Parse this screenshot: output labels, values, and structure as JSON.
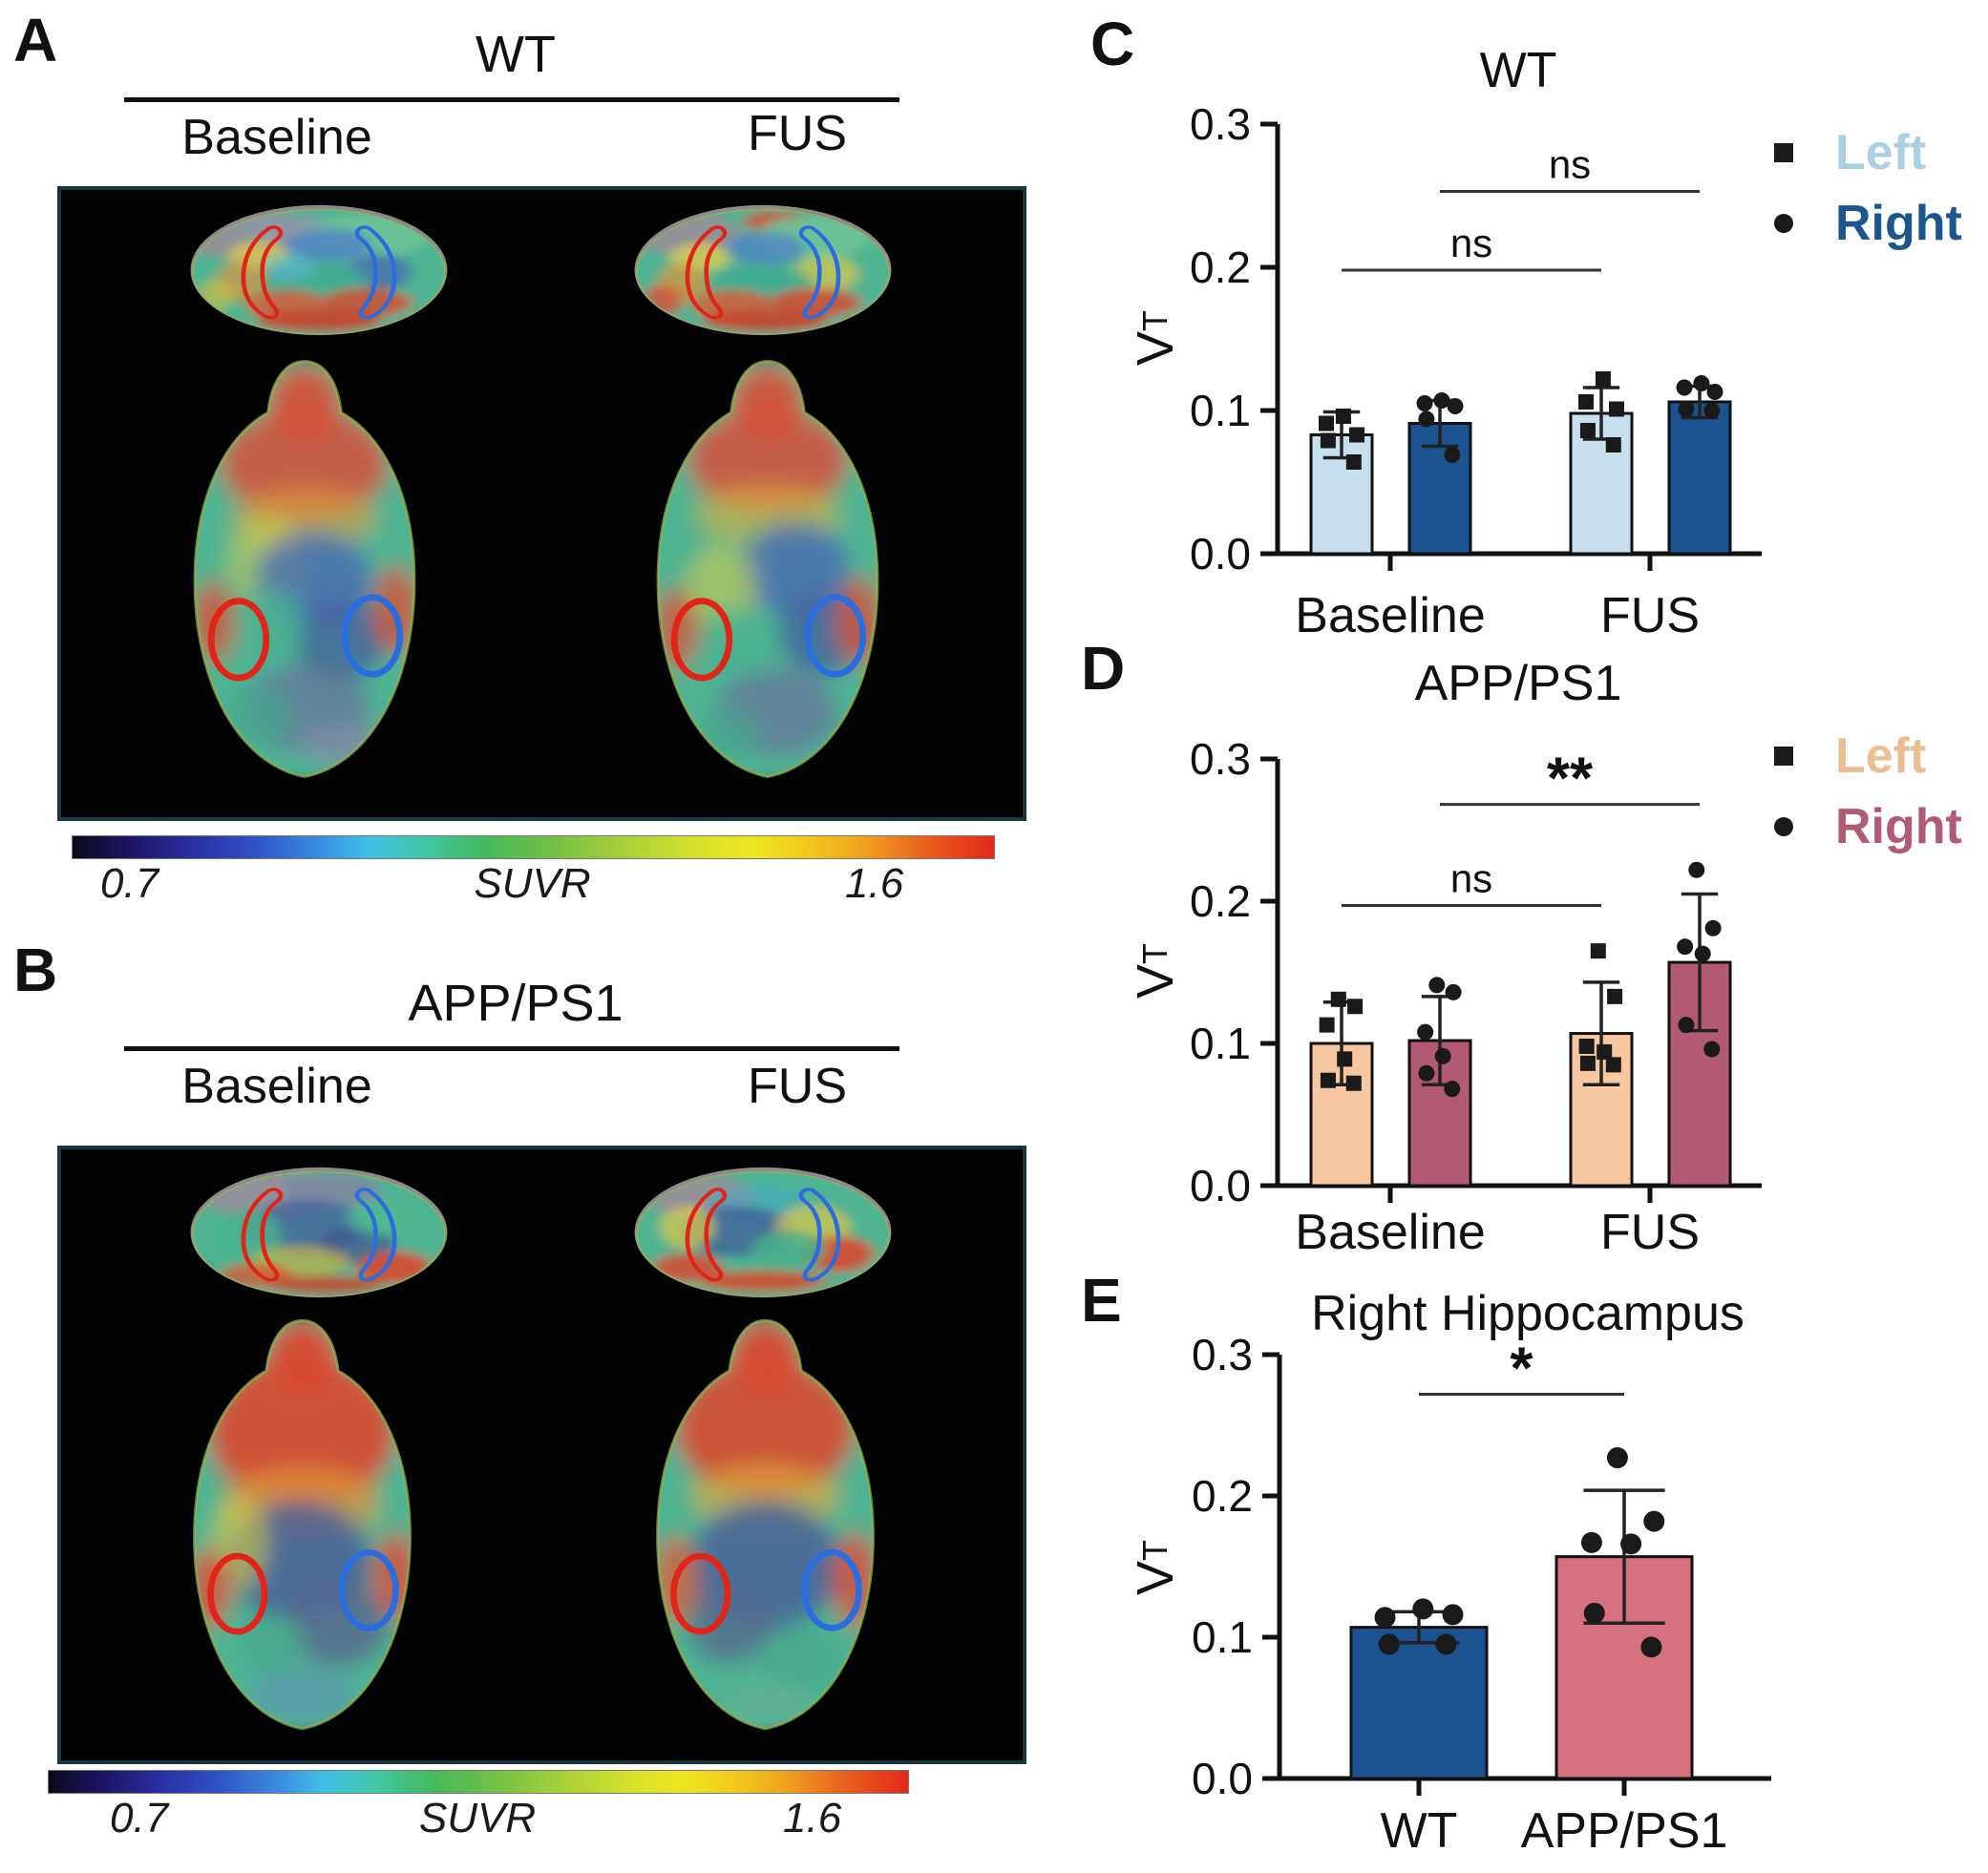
{
  "panels": {
    "A": {
      "label": "A",
      "title": "WT",
      "columns": [
        "Baseline",
        "FUS"
      ],
      "colorbar": {
        "min": "0.7",
        "label": "SUVR",
        "max": "1.6"
      },
      "roi": {
        "left_outline": "#e02418",
        "right_outline": "#2a6ddf"
      }
    },
    "B": {
      "label": "B",
      "title": "APP/PS1",
      "columns": [
        "Baseline",
        "FUS"
      ],
      "colorbar": {
        "min": "0.7",
        "label": "SUVR",
        "max": "1.6"
      },
      "roi": {
        "left_outline": "#e02418",
        "right_outline": "#2a6ddf"
      }
    },
    "C": {
      "label": "C"
    },
    "D": {
      "label": "D"
    },
    "E": {
      "label": "E"
    }
  },
  "colorbar_gradient": [
    [
      "0%",
      "#0a0a18"
    ],
    [
      "6%",
      "#1c1464"
    ],
    [
      "13%",
      "#2a2ea0"
    ],
    [
      "20%",
      "#2f55c8"
    ],
    [
      "27%",
      "#3a8ee0"
    ],
    [
      "32%",
      "#3fc0e8"
    ],
    [
      "38%",
      "#41c8a8"
    ],
    [
      "45%",
      "#45b858"
    ],
    [
      "52%",
      "#72c146"
    ],
    [
      "60%",
      "#a8d038"
    ],
    [
      "68%",
      "#d8e22c"
    ],
    [
      "74%",
      "#eee420"
    ],
    [
      "80%",
      "#f2c81e"
    ],
    [
      "86%",
      "#f0a01e"
    ],
    [
      "92%",
      "#ea6420"
    ],
    [
      "100%",
      "#e22818"
    ]
  ],
  "chart_data": [
    {
      "type": "bar",
      "panel": "C",
      "title": "WT",
      "ylabel": "V",
      "ylabel_sub": "T",
      "ylim": [
        0,
        0.3
      ],
      "yticks": [
        "0.0",
        "0.1",
        "0.2",
        "0.3"
      ],
      "categories": [
        "Baseline",
        "FUS"
      ],
      "series": [
        {
          "name": "Left",
          "marker": "square",
          "bar_color": "#c7e0ed",
          "label_color": "#a9d1e2",
          "values": [
            0.083,
            0.098
          ],
          "sd": [
            0.016,
            0.018
          ],
          "points": [
            [
              0.096,
              0.091,
              0.083,
              0.079,
              0.064
            ],
            [
              0.122,
              0.106,
              0.101,
              0.086,
              0.076
            ]
          ]
        },
        {
          "name": "Right",
          "marker": "circle",
          "bar_color": "#1b5390",
          "label_color": "#1b568f",
          "values": [
            0.091,
            0.106
          ],
          "sd": [
            0.016,
            0.011
          ],
          "points": [
            [
              0.107,
              0.105,
              0.103,
              0.094,
              0.069
            ],
            [
              0.119,
              0.116,
              0.113,
              0.101,
              0.1
            ]
          ]
        }
      ],
      "significance": [
        {
          "label": "ns",
          "bars": [
            [
              0,
              0
            ],
            [
              1,
              0
            ]
          ],
          "y": 0.198
        },
        {
          "label": "ns",
          "bars": [
            [
              0,
              1
            ],
            [
              1,
              1
            ]
          ],
          "y": 0.253
        }
      ],
      "legend_position": "right",
      "grid": false
    },
    {
      "type": "bar",
      "panel": "D",
      "title": "APP/PS1",
      "ylabel": "V",
      "ylabel_sub": "T",
      "ylim": [
        0,
        0.3
      ],
      "yticks": [
        "0.0",
        "0.1",
        "0.2",
        "0.3"
      ],
      "categories": [
        "Baseline",
        "FUS"
      ],
      "series": [
        {
          "name": "Left",
          "marker": "square",
          "bar_color": "#f6c7a0",
          "label_color": "#eabd92",
          "values": [
            0.1,
            0.107
          ],
          "sd": [
            0.029,
            0.036
          ],
          "points": [
            [
              0.131,
              0.126,
              0.113,
              0.089,
              0.074,
              0.072
            ],
            [
              0.165,
              0.133,
              0.098,
              0.094,
              0.086,
              0.085
            ]
          ]
        },
        {
          "name": "Right",
          "marker": "circle",
          "bar_color": "#b25a74",
          "label_color": "#b25a74",
          "values": [
            0.102,
            0.157
          ],
          "sd": [
            0.031,
            0.048
          ],
          "points": [
            [
              0.141,
              0.136,
              0.108,
              0.091,
              0.079,
              0.068
            ],
            [
              0.222,
              0.181,
              0.168,
              0.163,
              0.113,
              0.096
            ]
          ]
        }
      ],
      "significance": [
        {
          "label": "ns",
          "bars": [
            [
              0,
              0
            ],
            [
              1,
              0
            ]
          ],
          "y": 0.197
        },
        {
          "label": "**",
          "bars": [
            [
              0,
              1
            ],
            [
              1,
              1
            ]
          ],
          "y": 0.268
        }
      ],
      "legend_position": "right",
      "grid": false
    },
    {
      "type": "bar",
      "panel": "E",
      "title": "Right Hippocampus",
      "ylabel": "V",
      "ylabel_sub": "T",
      "ylim": [
        0,
        0.3
      ],
      "yticks": [
        "0.0",
        "0.1",
        "0.2",
        "0.3"
      ],
      "categories": [
        "WT",
        "APP/PS1"
      ],
      "series": [
        {
          "name": null,
          "marker": "circle",
          "bar_colors": [
            "#1b5390",
            "#d5707f"
          ],
          "values": [
            0.107,
            0.157
          ],
          "sd": [
            0.011,
            0.047
          ],
          "points": [
            [
              0.12,
              0.114,
              0.116,
              0.095,
              0.095
            ],
            [
              0.227,
              0.182,
              0.167,
              0.166,
              0.117,
              0.093
            ]
          ]
        }
      ],
      "significance": [
        {
          "label": "*",
          "bars": [
            [
              0,
              0
            ],
            [
              1,
              0
            ]
          ],
          "y": 0.272
        }
      ],
      "grid": false
    }
  ]
}
